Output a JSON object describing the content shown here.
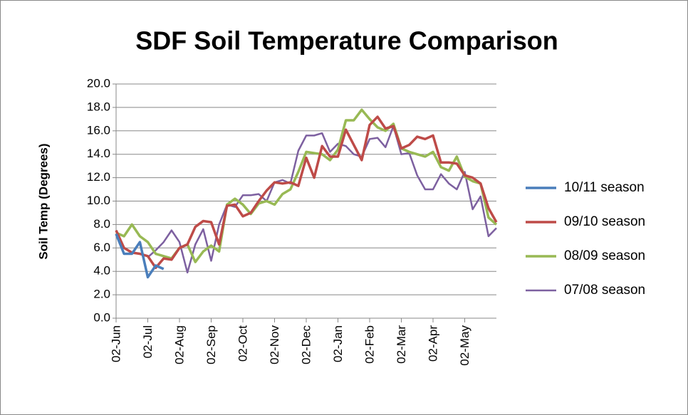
{
  "chart_data": {
    "type": "line",
    "title": "SDF Soil Temperature Comparison",
    "y_label": "Soil Temp (Degrees)",
    "categories": [
      "02-Jun",
      null,
      null,
      null,
      "02-Jul",
      null,
      null,
      null,
      "02-Aug",
      null,
      null,
      null,
      "02-Sep",
      null,
      null,
      null,
      "02-Oct",
      null,
      null,
      null,
      "02-Nov",
      null,
      null,
      null,
      "02-Dec",
      null,
      null,
      null,
      "02-Jan",
      null,
      null,
      null,
      "02-Feb",
      null,
      null,
      null,
      "02-Mar",
      null,
      null,
      null,
      "02-Apr",
      null,
      null,
      null,
      "02-May",
      null,
      null,
      null,
      null
    ],
    "series": [
      {
        "name": "10/11 season",
        "color": "#4a7ebb",
        "values": [
          7.2,
          5.5,
          5.5,
          6.5,
          3.5,
          4.5,
          4.2,
          null,
          null,
          null,
          null,
          null,
          null,
          null,
          null,
          null,
          null,
          null,
          null,
          null,
          null,
          null,
          null,
          null,
          null,
          null,
          null,
          null,
          null,
          null,
          null,
          null,
          null,
          null,
          null,
          null,
          null,
          null,
          null,
          null,
          null,
          null,
          null,
          null,
          null,
          null,
          null,
          null,
          null
        ]
      },
      {
        "name": "09/10 season",
        "color": "#be4b48",
        "values": [
          7.5,
          6.0,
          5.6,
          5.5,
          5.3,
          4.3,
          5.1,
          5.0,
          6.0,
          6.3,
          7.8,
          8.3,
          8.2,
          6.3,
          9.6,
          9.7,
          8.7,
          9.0,
          10.0,
          10.9,
          11.6,
          11.5,
          11.6,
          11.3,
          13.7,
          12.0,
          14.7,
          13.8,
          13.8,
          16.1,
          14.8,
          13.5,
          16.5,
          17.2,
          16.2,
          16.4,
          14.5,
          14.8,
          15.5,
          15.3,
          15.6,
          13.3,
          13.3,
          13.2,
          12.2,
          12.0,
          11.5,
          9.4,
          8.2
        ]
      },
      {
        "name": "08/09 season",
        "color": "#98b954",
        "values": [
          7.3,
          7.0,
          8.0,
          7.0,
          6.5,
          5.5,
          5.3,
          5.1,
          6.0,
          6.3,
          4.8,
          5.7,
          6.2,
          5.7,
          9.7,
          10.2,
          9.7,
          8.9,
          9.8,
          10.0,
          9.7,
          10.6,
          11.0,
          12.5,
          14.2,
          14.1,
          14.0,
          13.5,
          14.4,
          16.9,
          16.9,
          17.8,
          17.0,
          16.3,
          16.0,
          16.6,
          14.5,
          14.2,
          14.0,
          13.8,
          14.2,
          12.9,
          12.6,
          13.8,
          12.1,
          11.7,
          11.5,
          8.6,
          8.0
        ]
      },
      {
        "name": "07/08 season",
        "color": "#7d60a0",
        "values": [
          null,
          null,
          null,
          null,
          5.2,
          5.8,
          6.5,
          7.5,
          6.5,
          3.9,
          6.3,
          7.6,
          4.9,
          8.0,
          9.7,
          9.5,
          10.5,
          10.5,
          10.6,
          10.0,
          11.6,
          11.8,
          11.5,
          14.3,
          15.6,
          15.6,
          15.8,
          14.2,
          14.9,
          14.7,
          14.0,
          13.8,
          15.3,
          15.4,
          14.6,
          16.4,
          14.0,
          14.1,
          12.2,
          11.0,
          11.0,
          12.3,
          11.5,
          11.0,
          12.5,
          9.3,
          10.4,
          7.0,
          7.7
        ]
      }
    ],
    "ylim": [
      0,
      20
    ],
    "yticks": [
      {
        "value": 0,
        "label": "0.0"
      },
      {
        "value": 2,
        "label": "2.0"
      },
      {
        "value": 4,
        "label": "4.0"
      },
      {
        "value": 6,
        "label": "6.0"
      },
      {
        "value": 8,
        "label": "8.0"
      },
      {
        "value": 10,
        "label": "10.0"
      },
      {
        "value": 12,
        "label": "12.0"
      },
      {
        "value": 14,
        "label": "14.0"
      },
      {
        "value": 16,
        "label": "16.0"
      },
      {
        "value": 18,
        "label": "18.0"
      },
      {
        "value": 20,
        "label": "20.0"
      }
    ],
    "grid": true,
    "legend": "right"
  }
}
